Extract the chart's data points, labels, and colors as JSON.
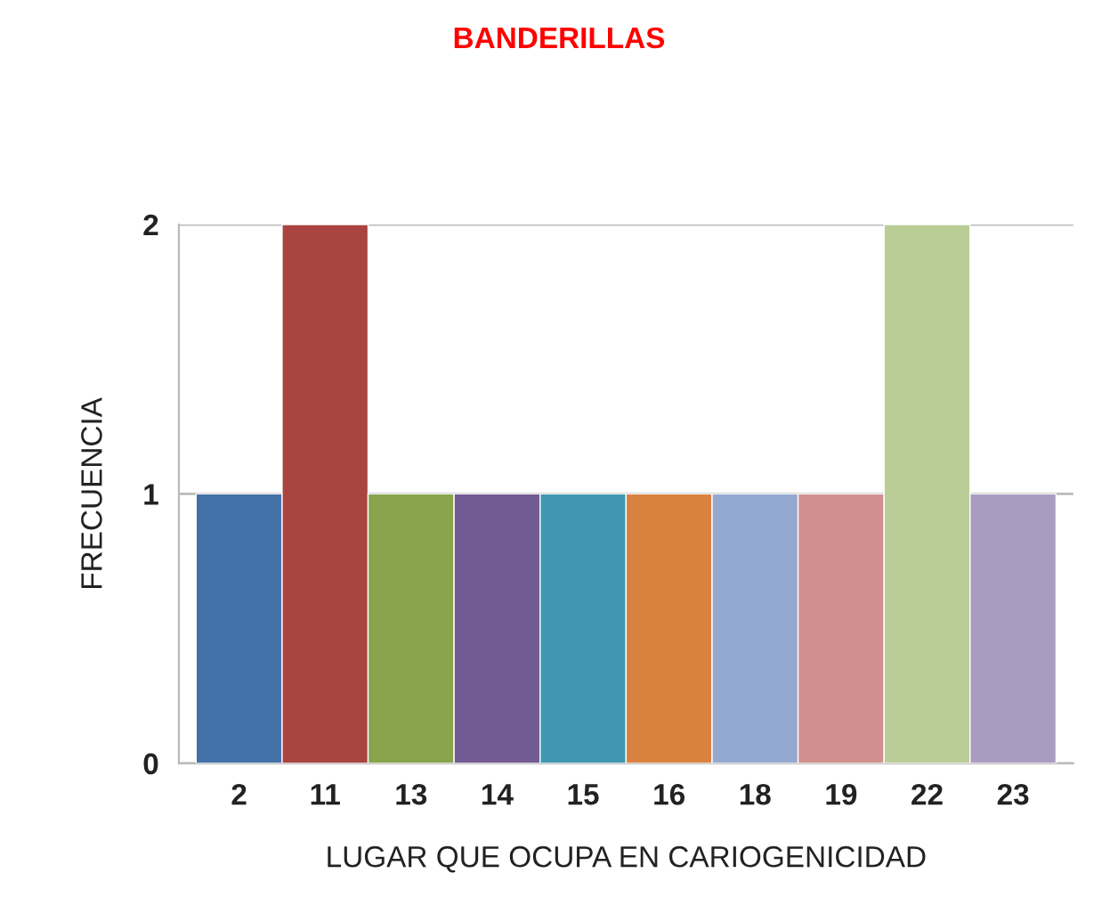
{
  "chart_data": {
    "type": "bar",
    "title": "BANDERILLAS",
    "xlabel": "LUGAR QUE OCUPA EN CARIOGENICIDAD",
    "ylabel": "FRECUENCIA",
    "categories": [
      "2",
      "11",
      "13",
      "14",
      "15",
      "16",
      "18",
      "19",
      "22",
      "23"
    ],
    "values": [
      1,
      2,
      1,
      1,
      1,
      1,
      1,
      1,
      2,
      1
    ],
    "colors": [
      "#4571a9",
      "#a9443f",
      "#88a44c",
      "#725a92",
      "#3f98af",
      "#d98240",
      "#94a9d1",
      "#d18f8e",
      "#bbcd96",
      "#a99bc1"
    ],
    "ylim": [
      0,
      2
    ],
    "yticks": [
      0,
      1,
      2
    ],
    "grid": "y"
  }
}
